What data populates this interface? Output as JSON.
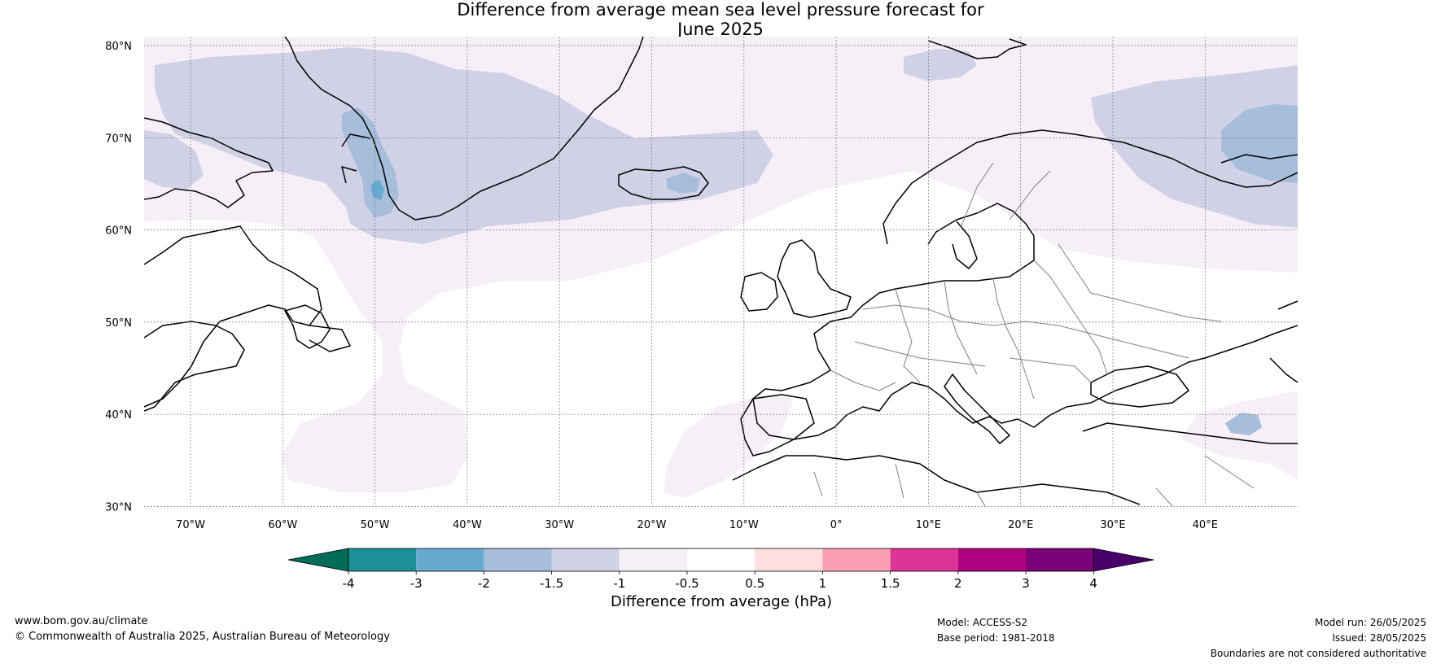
{
  "title": {
    "line1": "Difference from average mean sea level pressure forecast for",
    "line2": "June 2025"
  },
  "map": {
    "lat_labels": [
      "80°N",
      "70°N",
      "60°N",
      "50°N",
      "40°N",
      "30°N"
    ],
    "lon_labels": [
      "70°W",
      "60°W",
      "50°W",
      "40°W",
      "30°W",
      "20°W",
      "10°W",
      "0°",
      "10°E",
      "20°E",
      "30°E",
      "40°E"
    ],
    "colors": {
      "coast": "#000000",
      "border": "#808080",
      "grid": "#7a7a7a"
    }
  },
  "colorbar": {
    "label": "Difference from average (hPa)",
    "ticks": [
      "-4",
      "-3",
      "-2",
      "-1.5",
      "-1",
      "-0.5",
      "0.5",
      "1",
      "1.5",
      "2",
      "3",
      "4"
    ],
    "colors": [
      "#016c59",
      "#1c9099",
      "#67a9cf",
      "#a6bddb",
      "#d0d1e6",
      "#f6eff7",
      "#ffffff",
      "#fde0dd",
      "#fa9fb5",
      "#dd3497",
      "#ae017e",
      "#7a0177",
      "#49006a"
    ]
  },
  "footer": {
    "website": "www.bom.gov.au/climate",
    "copyright": "© Commonwealth of Australia 2025, Australian Bureau of Meteorology",
    "model": "Model: ACCESS-S2",
    "base_period": "Base period: 1981-2018",
    "model_run": "Model run: 26/05/2025",
    "issued": "Issued: 28/05/2025",
    "disclaimer": "Boundaries are not considered authoritative"
  }
}
